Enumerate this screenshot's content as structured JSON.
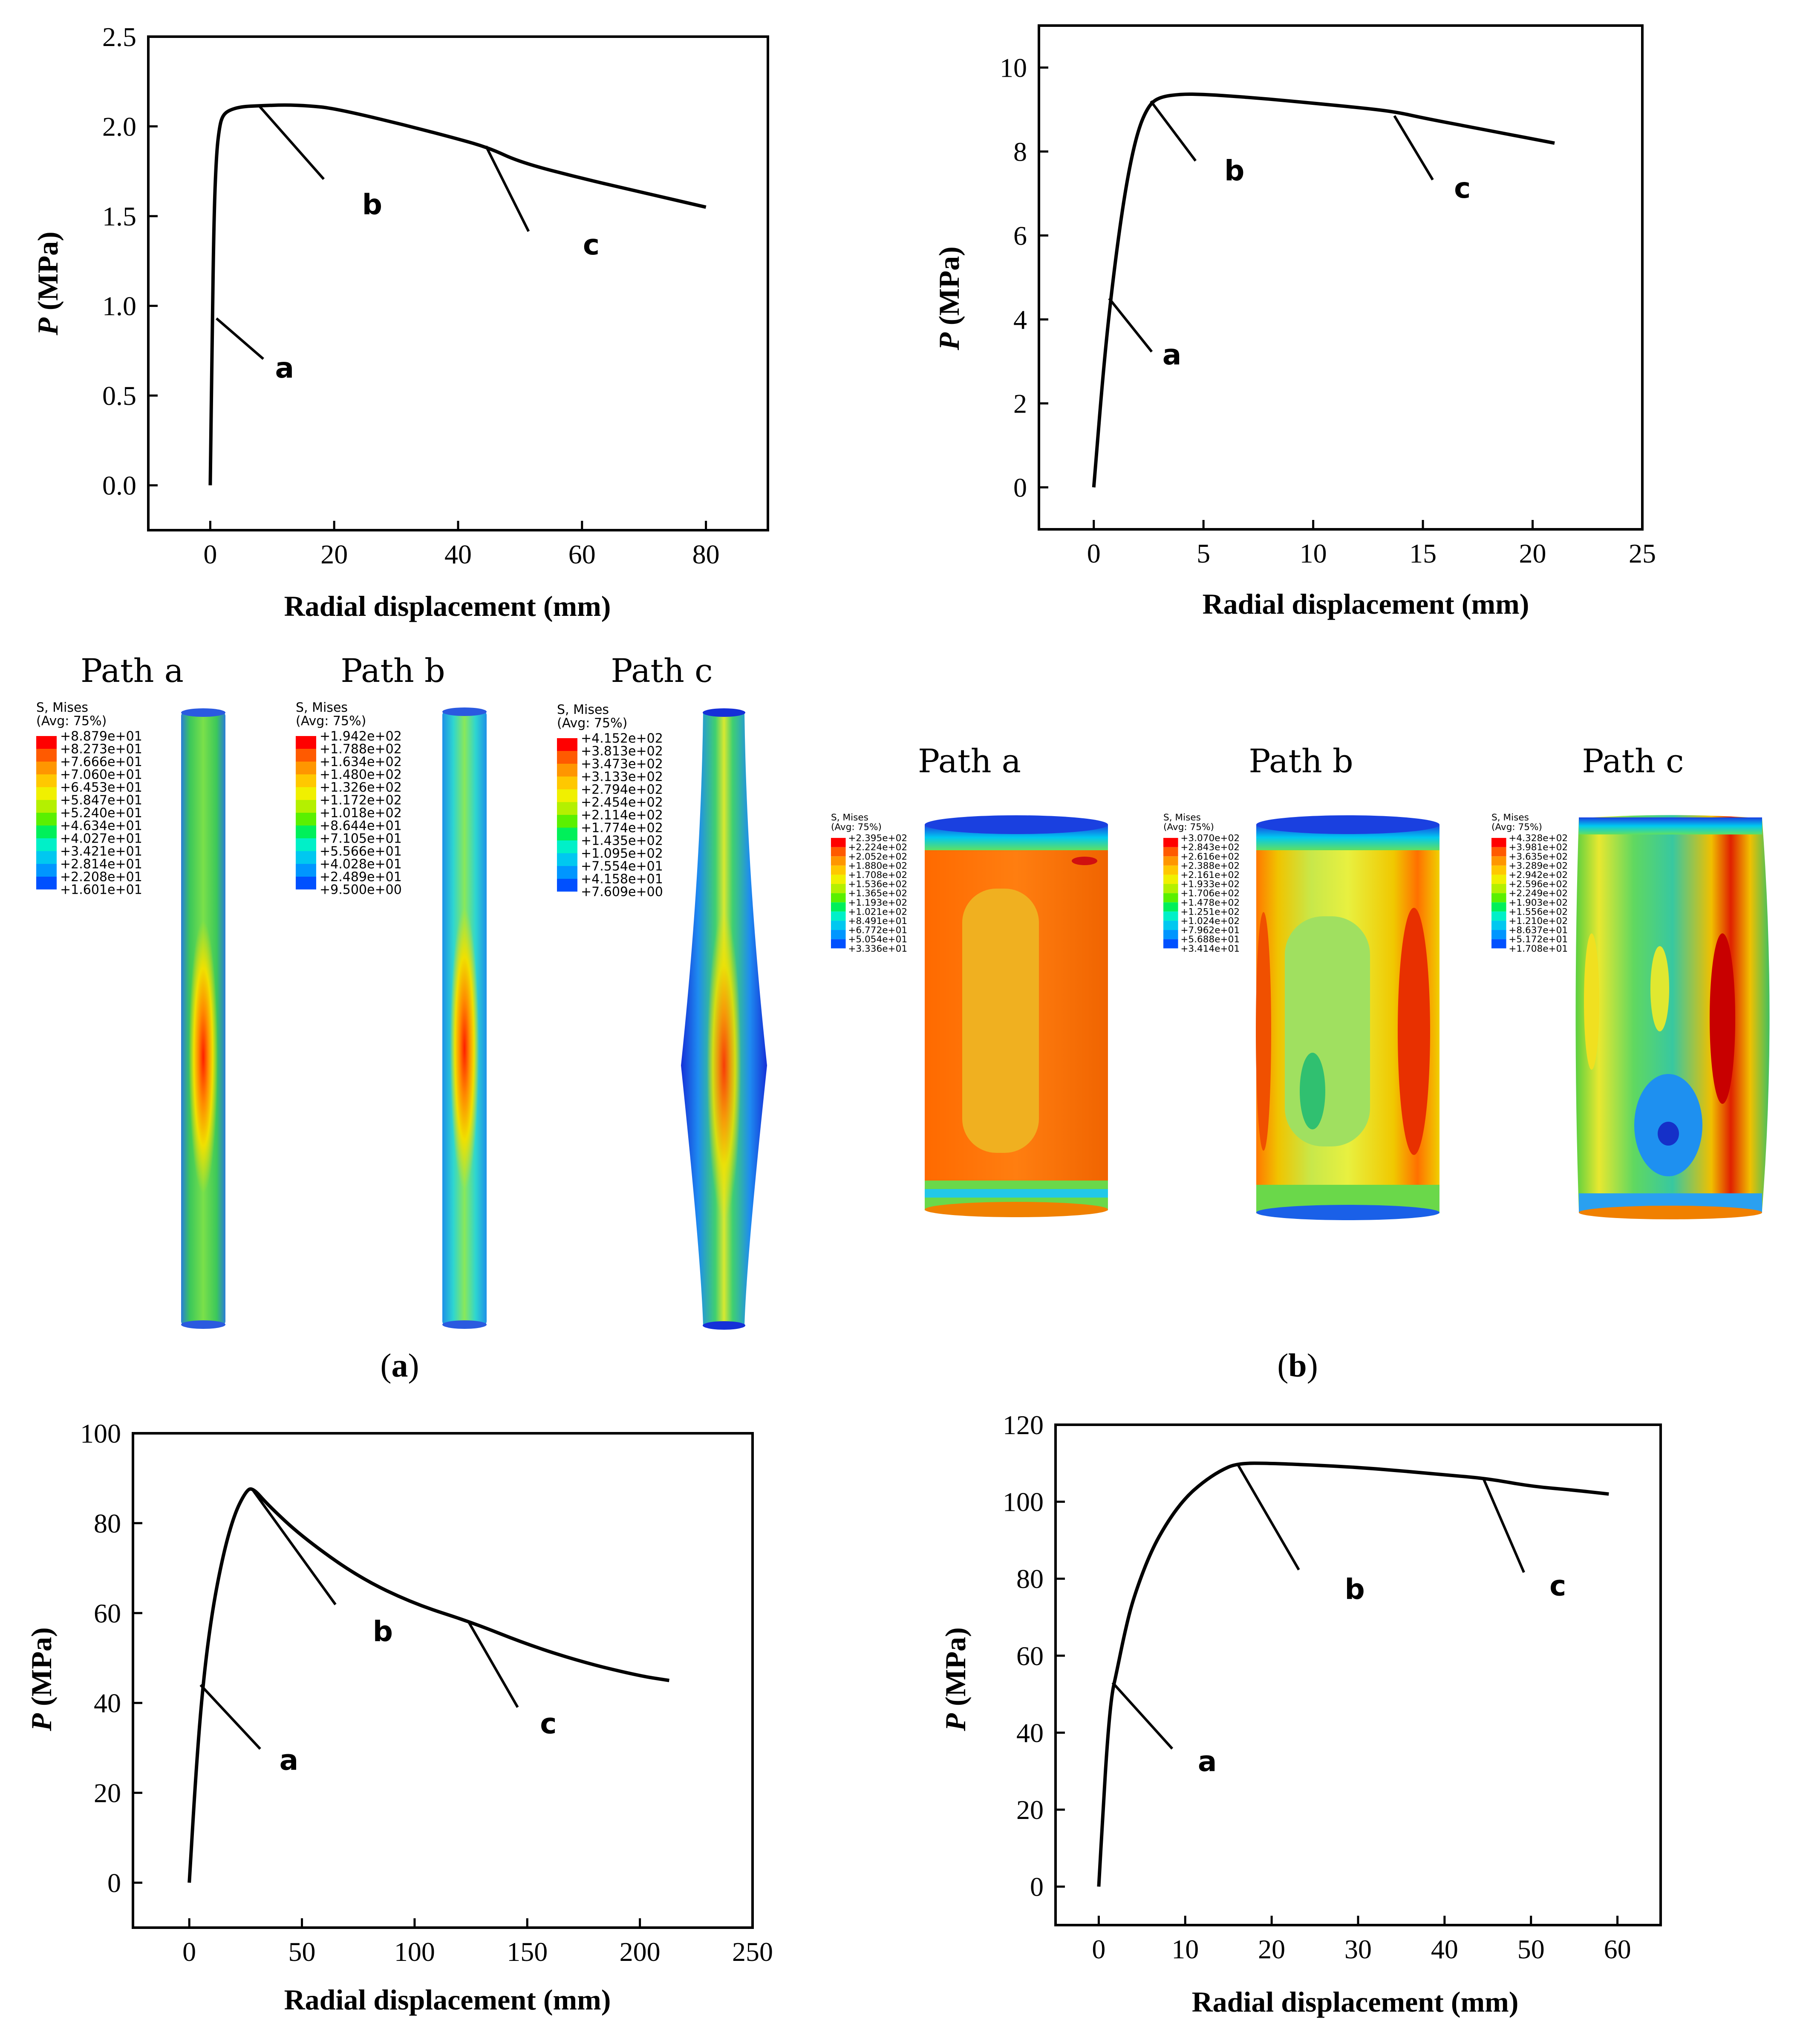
{
  "panel_labels": {
    "a": "a",
    "b": "b"
  },
  "fem": {
    "path_labels": [
      "Path a",
      "Path b",
      "Path c"
    ],
    "legend_title": "S, Mises",
    "legend_avg": "(Avg: 75%)",
    "legend_colors": [
      "#ff0000",
      "#ff5a00",
      "#ff9600",
      "#ffc800",
      "#f0f000",
      "#b4f000",
      "#5af000",
      "#00f05a",
      "#00f0c8",
      "#00c8f0",
      "#0096ff",
      "#0050ff",
      "#0000ff"
    ],
    "upper_scales": [
      [
        "+8.879e+01",
        "+8.273e+01",
        "+7.666e+01",
        "+7.060e+01",
        "+6.453e+01",
        "+5.847e+01",
        "+5.240e+01",
        "+4.634e+01",
        "+4.027e+01",
        "+3.421e+01",
        "+2.814e+01",
        "+2.208e+01",
        "+1.601e+01"
      ],
      [
        "+1.942e+02",
        "+1.788e+02",
        "+1.634e+02",
        "+1.480e+02",
        "+1.326e+02",
        "+1.172e+02",
        "+1.018e+02",
        "+8.644e+01",
        "+7.105e+01",
        "+5.566e+01",
        "+4.028e+01",
        "+2.489e+01",
        "+9.500e+00"
      ],
      [
        "+4.152e+02",
        "+3.813e+02",
        "+3.473e+02",
        "+3.133e+02",
        "+2.794e+02",
        "+2.454e+02",
        "+2.114e+02",
        "+1.774e+02",
        "+1.435e+02",
        "+1.095e+02",
        "+7.554e+01",
        "+4.158e+01",
        "+7.609e+00"
      ]
    ],
    "right_scales": [
      [
        "+2.395e+02",
        "+2.224e+02",
        "+2.052e+02",
        "+1.880e+02",
        "+1.708e+02",
        "+1.536e+02",
        "+1.365e+02",
        "+1.193e+02",
        "+1.021e+02",
        "+8.491e+01",
        "+6.772e+01",
        "+5.054e+01",
        "+3.336e+01"
      ],
      [
        "+3.070e+02",
        "+2.843e+02",
        "+2.616e+02",
        "+2.388e+02",
        "+2.161e+02",
        "+1.933e+02",
        "+1.706e+02",
        "+1.478e+02",
        "+1.251e+02",
        "+1.024e+02",
        "+7.962e+01",
        "+5.688e+01",
        "+3.414e+01"
      ],
      [
        "+4.328e+02",
        "+3.981e+02",
        "+3.635e+02",
        "+3.289e+02",
        "+2.942e+02",
        "+2.596e+02",
        "+2.249e+02",
        "+1.903e+02",
        "+1.556e+02",
        "+1.210e+02",
        "+8.637e+01",
        "+5.172e+01",
        "+1.708e+01"
      ]
    ]
  },
  "chart_data": [
    {
      "type": "line",
      "xlabel": "Radial displacement (mm)",
      "ylabel_italic": "P",
      "ylabel_rest": " (MPa)",
      "xlim": [
        -10,
        90
      ],
      "ylim": [
        -0.25,
        2.5
      ],
      "xticks": [
        0,
        20,
        40,
        60,
        80
      ],
      "yticks": [
        0.0,
        0.5,
        1.0,
        1.5,
        2.0,
        2.5
      ],
      "ytick_labels": [
        "0.0",
        "0.5",
        "1.0",
        "1.5",
        "2.0",
        "2.5"
      ],
      "series": [
        {
          "name": "P",
          "x": [
            0,
            0.3,
            0.6,
            1,
            1.5,
            2,
            3,
            5,
            8,
            12,
            16,
            20,
            30,
            40,
            45,
            50,
            60,
            70,
            80
          ],
          "y": [
            0,
            0.8,
            1.5,
            1.85,
            2.0,
            2.06,
            2.09,
            2.11,
            2.115,
            2.12,
            2.115,
            2.1,
            2.02,
            1.93,
            1.88,
            1.8,
            1.71,
            1.63,
            1.55
          ]
        }
      ],
      "annotations": [
        {
          "label": "a",
          "x": 1,
          "y": 0.93
        },
        {
          "label": "b",
          "x": 8,
          "y": 2.11
        },
        {
          "label": "c",
          "x": 44.5,
          "y": 1.89
        }
      ]
    },
    {
      "type": "line",
      "xlabel": "Radial displacement (mm)",
      "ylabel_italic": "P",
      "ylabel_rest": " (MPa)",
      "xlim": [
        -2.5,
        25
      ],
      "ylim": [
        -1,
        11
      ],
      "xticks": [
        0,
        5,
        10,
        15,
        20,
        25
      ],
      "yticks": [
        0,
        2,
        4,
        6,
        8,
        10
      ],
      "ytick_labels": [
        "0",
        "2",
        "4",
        "6",
        "8",
        "10"
      ],
      "series": [
        {
          "name": "P",
          "x": [
            0,
            0.5,
            1,
            1.5,
            2,
            2.5,
            3,
            4,
            5,
            6,
            8,
            10,
            12,
            13.7,
            15,
            17,
            19,
            21
          ],
          "y": [
            0,
            3.2,
            5.5,
            7.3,
            8.5,
            9.1,
            9.3,
            9.37,
            9.36,
            9.33,
            9.25,
            9.15,
            9.05,
            8.95,
            8.8,
            8.6,
            8.4,
            8.2
          ]
        }
      ],
      "annotations": [
        {
          "label": "a",
          "x": 0.7,
          "y": 4.5
        },
        {
          "label": "b",
          "x": 2.6,
          "y": 9.2
        },
        {
          "label": "c",
          "x": 13.7,
          "y": 8.85
        }
      ]
    },
    {
      "type": "line",
      "xlabel": "Radial displacement (mm)",
      "ylabel_italic": "P",
      "ylabel_rest": " (MPa)",
      "xlim": [
        -25,
        250
      ],
      "ylim": [
        -10,
        100
      ],
      "xticks": [
        0,
        50,
        100,
        150,
        200,
        250
      ],
      "yticks": [
        0,
        20,
        40,
        60,
        80,
        100
      ],
      "ytick_labels": [
        "0",
        "20",
        "40",
        "60",
        "80",
        "100"
      ],
      "series": [
        {
          "name": "P",
          "x": [
            0,
            3,
            6,
            10,
            15,
            20,
            25,
            28,
            35,
            50,
            75,
            100,
            125,
            150,
            175,
            200,
            213
          ],
          "y": [
            0,
            25,
            44,
            60,
            73,
            82,
            87,
            88,
            84,
            77,
            68,
            62,
            58,
            53,
            49,
            46,
            45
          ]
        }
      ],
      "annotations": [
        {
          "label": "a",
          "x": 5,
          "y": 44
        },
        {
          "label": "b",
          "x": 28,
          "y": 87.5
        },
        {
          "label": "c",
          "x": 124,
          "y": 58
        }
      ]
    },
    {
      "type": "line",
      "xlabel": "Radial displacement (mm)",
      "ylabel_italic": "P",
      "ylabel_rest": " (MPa)",
      "xlim": [
        -5,
        65
      ],
      "ylim": [
        -10,
        120
      ],
      "xticks": [
        0,
        10,
        20,
        30,
        40,
        50,
        60
      ],
      "yticks": [
        0,
        20,
        40,
        60,
        80,
        100,
        120
      ],
      "ytick_labels": [
        "0",
        "20",
        "40",
        "60",
        "80",
        "100",
        "120"
      ],
      "series": [
        {
          "name": "P",
          "x": [
            0,
            0.5,
            1,
            1.5,
            2,
            3,
            4,
            6,
            8,
            10,
            12,
            14,
            16,
            20,
            30,
            40,
            45,
            50,
            55,
            59
          ],
          "y": [
            0,
            20,
            38,
            50,
            55,
            66,
            75,
            87,
            95,
            101,
            105,
            108,
            110,
            110,
            109,
            107,
            106,
            104,
            103,
            102
          ]
        }
      ],
      "annotations": [
        {
          "label": "a",
          "x": 1.6,
          "y": 53
        },
        {
          "label": "b",
          "x": 16,
          "y": 110
        },
        {
          "label": "c",
          "x": 44.5,
          "y": 106
        }
      ]
    }
  ]
}
